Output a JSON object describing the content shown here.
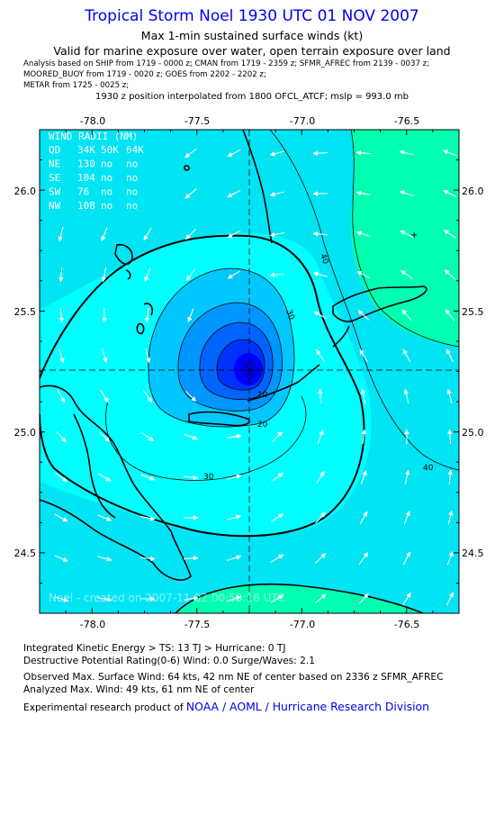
{
  "title": "Tropical Storm Noel 1930 UTC 01 NOV 2007",
  "subtitle1": "Max 1-min sustained surface winds (kt)",
  "subtitle2": "Valid for marine exposure over water, open terrain exposure over land",
  "analysis_lines": [
    "Analysis based on  SHIP from 1719 - 0000 z;  CMAN from 1719 - 2359 z;  SFMR_AFREC from 2139 - 0037 z;",
    "MOORED_BUOY from 1719 - 0020 z;  GOES from 2202 - 2202 z;",
    "METAR from 1725 - 0025 z;"
  ],
  "position_note": "1930 z position interpolated from 1800 OFCL_ATCF; mslp = 993.0 mb",
  "map": {
    "lon_ticks": [
      "-78.0",
      "-77.5",
      "-77.0",
      "-76.5"
    ],
    "lat_ticks": [
      "26.0",
      "25.5",
      "25.0",
      "24.5"
    ],
    "lon_range": [
      -78.25,
      -76.25
    ],
    "lat_range": [
      24.25,
      26.25
    ],
    "center": {
      "lon": -77.25,
      "lat": 25.25
    },
    "contour_labels": [
      "40",
      "30",
      "20",
      "10",
      "30",
      "40"
    ],
    "watermark": "Noel - created on 2007-11-02 00:50:18 UTC",
    "colors": {
      "background": "#00e4f4",
      "band_30": "#00ffff",
      "band_40": "#00ffb0",
      "core_1": "#00c8ff",
      "core_2": "#0096ff",
      "core_3": "#0064ff",
      "core_4": "#0032ff",
      "core_5": "#0000ff"
    }
  },
  "wind_radii": {
    "header": "WIND RADII (NM)",
    "columns": [
      "QD",
      "34K",
      "50K",
      "64K"
    ],
    "rows": [
      [
        "NE",
        "130",
        "no",
        "no"
      ],
      [
        "SE",
        "104",
        "no",
        "no"
      ],
      [
        "SW",
        "76",
        "no",
        "no"
      ],
      [
        "NW",
        "108",
        "no",
        "no"
      ]
    ]
  },
  "footer": {
    "ike": "Integrated Kinetic Energy > TS: 13 TJ   > Hurricane: 0 TJ",
    "dpr": "Destructive Potential Rating(0-6)   Wind: 0.0 Surge/Waves: 2.1",
    "observed": "Observed Max. Surface Wind: 64 kts, 42 nm NE of center based on 2336 z SFMR_AFREC",
    "analyzed": "Analyzed Max. Wind: 49 kts, 61 nm NE of center",
    "credit_prefix": "Experimental research product of ",
    "credit_link": "NOAA / AOML / Hurricane Research Division"
  }
}
